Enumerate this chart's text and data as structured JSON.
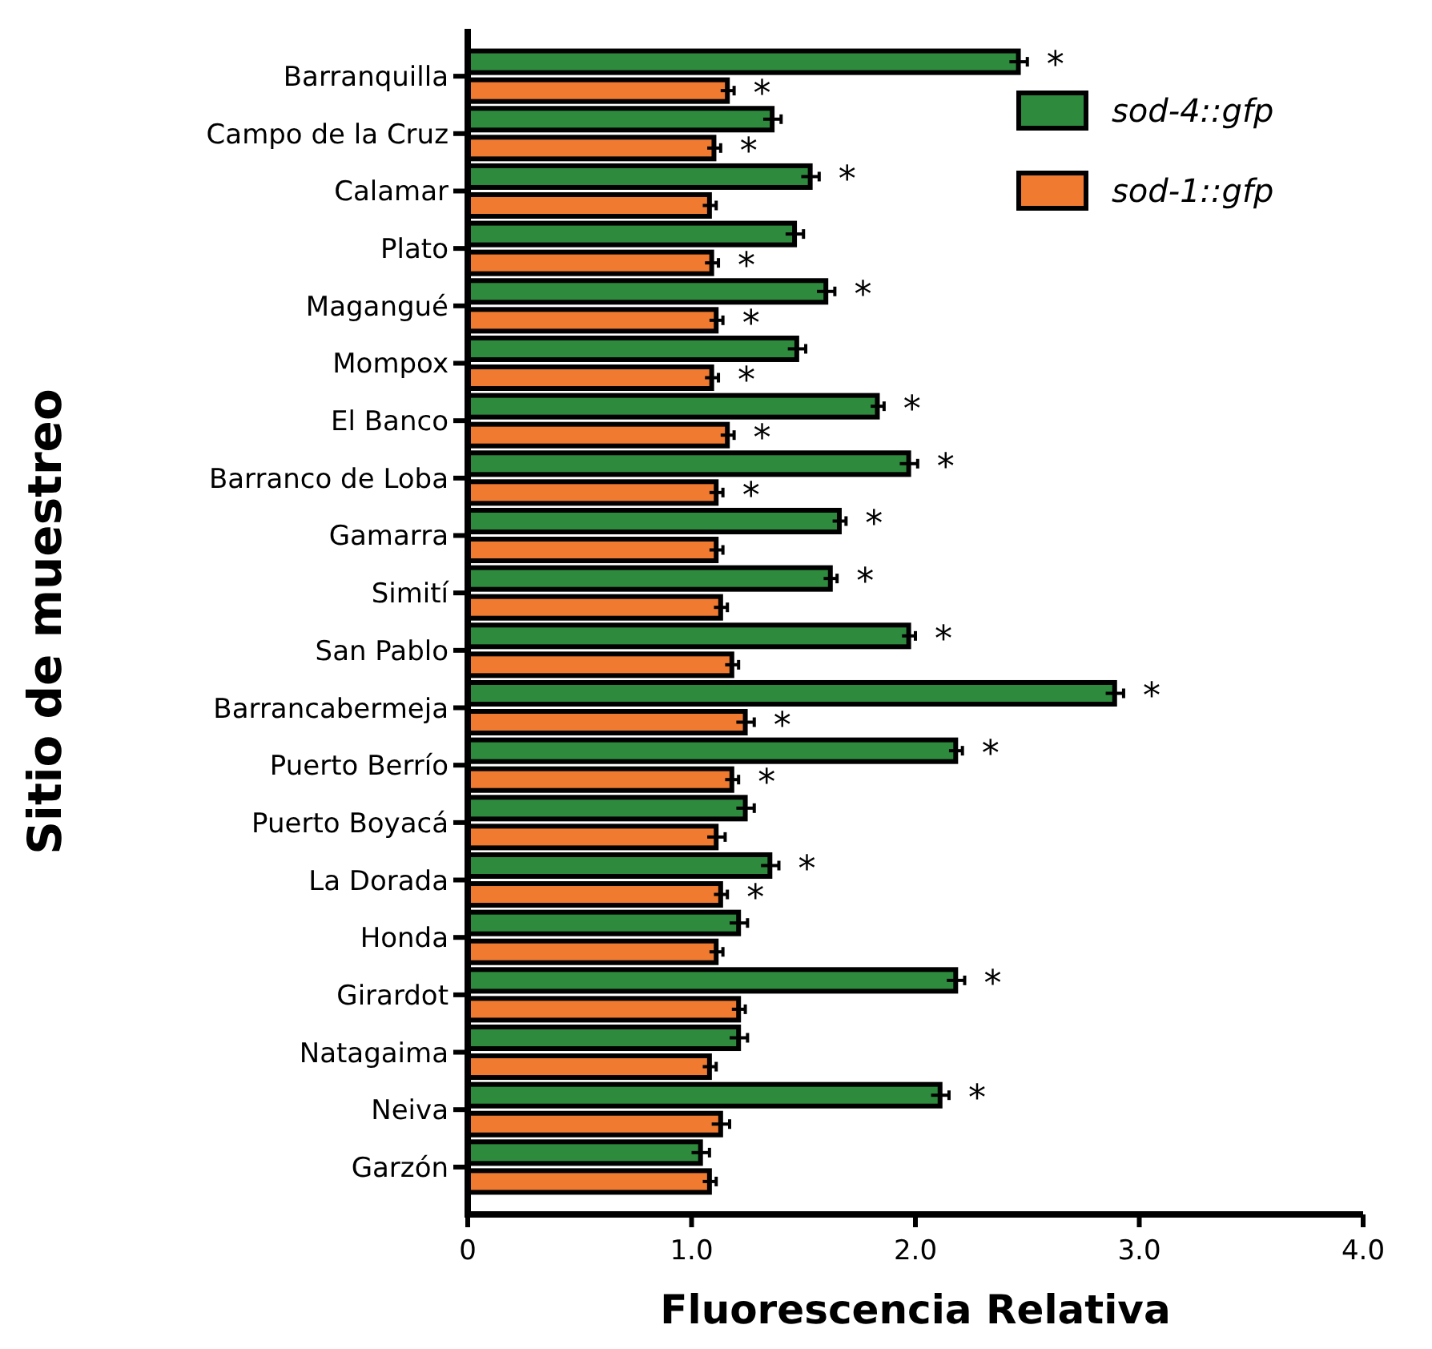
{
  "chart_data": {
    "type": "bar",
    "orientation": "horizontal",
    "xlabel": "Fluorescencia Relativa",
    "ylabel": "Sitio de muestreo",
    "categories": [
      "Barranquilla",
      "Campo de la Cruz",
      "Calamar",
      "Plato",
      "Magangué",
      "Mompox",
      "El Banco",
      "Barranco de Loba",
      "Gamarra",
      "Simití",
      "San Pablo",
      "Barrancabermeja",
      "Puerto Berrío",
      "Puerto Boyacá",
      "La Dorada",
      "Honda",
      "Girardot",
      "Natagaima",
      "Neiva",
      "Garzón"
    ],
    "series": [
      {
        "name": "sod-4::gfp",
        "color": "#2e8b3e",
        "values": [
          2.46,
          1.36,
          1.53,
          1.46,
          1.6,
          1.47,
          1.83,
          1.97,
          1.66,
          1.62,
          1.97,
          2.89,
          2.18,
          1.24,
          1.35,
          1.21,
          2.18,
          1.21,
          2.11,
          1.04
        ],
        "errors": [
          0.04,
          0.04,
          0.04,
          0.04,
          0.04,
          0.04,
          0.03,
          0.04,
          0.03,
          0.03,
          0.03,
          0.04,
          0.03,
          0.04,
          0.04,
          0.04,
          0.04,
          0.04,
          0.04,
          0.04
        ]
      },
      {
        "name": "sod-1::gfp",
        "color": "#f07a30",
        "values": [
          1.16,
          1.1,
          1.08,
          1.09,
          1.11,
          1.09,
          1.16,
          1.11,
          1.11,
          1.13,
          1.18,
          1.24,
          1.18,
          1.11,
          1.13,
          1.11,
          1.21,
          1.08,
          1.13,
          1.08
        ],
        "errors": [
          0.03,
          0.03,
          0.03,
          0.03,
          0.03,
          0.03,
          0.03,
          0.03,
          0.03,
          0.03,
          0.03,
          0.04,
          0.03,
          0.04,
          0.03,
          0.03,
          0.03,
          0.03,
          0.04,
          0.03
        ]
      }
    ],
    "xlim": [
      0,
      4
    ],
    "xticks": [
      {
        "value": 0,
        "label": "0"
      },
      {
        "value": 1,
        "label": "1.0"
      },
      {
        "value": 2,
        "label": "2.0"
      },
      {
        "value": 3,
        "label": "3.0"
      },
      {
        "value": 4,
        "label": "4.0"
      }
    ],
    "legend": "top right",
    "grid": false,
    "annotations": [
      {
        "text": "*",
        "x": 2.46,
        "y": "Barranquilla"
      },
      {
        "text": "*",
        "x": 1.16,
        "y": "Barranquilla"
      },
      {
        "text": "*",
        "x": 1.1,
        "y": "Campo de la Cruz"
      },
      {
        "text": "*",
        "x": 1.53,
        "y": "Calamar"
      },
      {
        "text": "*",
        "x": 1.09,
        "y": "Plato"
      },
      {
        "text": "*",
        "x": 1.6,
        "y": "Magangué"
      },
      {
        "text": "*",
        "x": 1.11,
        "y": "Magangué"
      },
      {
        "text": "*",
        "x": 1.09,
        "y": "Mompox"
      },
      {
        "text": "*",
        "x": 1.83,
        "y": "El Banco"
      },
      {
        "text": "*",
        "x": 1.16,
        "y": "El Banco"
      },
      {
        "text": "*",
        "x": 1.97,
        "y": "Barranco de Loba"
      },
      {
        "text": "*",
        "x": 1.11,
        "y": "Barranco de Loba"
      },
      {
        "text": "*",
        "x": 1.66,
        "y": "Gamarra"
      },
      {
        "text": "*",
        "x": 1.62,
        "y": "Simití"
      },
      {
        "text": "*",
        "x": 1.97,
        "y": "San Pablo"
      },
      {
        "text": "*",
        "x": 2.89,
        "y": "Barrancabermeja"
      },
      {
        "text": "*",
        "x": 1.24,
        "y": "Barrancabermeja"
      },
      {
        "text": "*",
        "x": 2.18,
        "y": "Puerto Berrío"
      },
      {
        "text": "*",
        "x": 1.18,
        "y": "Puerto Berrío"
      },
      {
        "text": "*",
        "x": 1.35,
        "y": "La Dorada"
      },
      {
        "text": "*",
        "x": 1.13,
        "y": "La Dorada"
      },
      {
        "text": "*",
        "x": 2.18,
        "y": "Girardot"
      },
      {
        "text": "*",
        "x": 2.11,
        "y": "Neiva"
      }
    ]
  }
}
